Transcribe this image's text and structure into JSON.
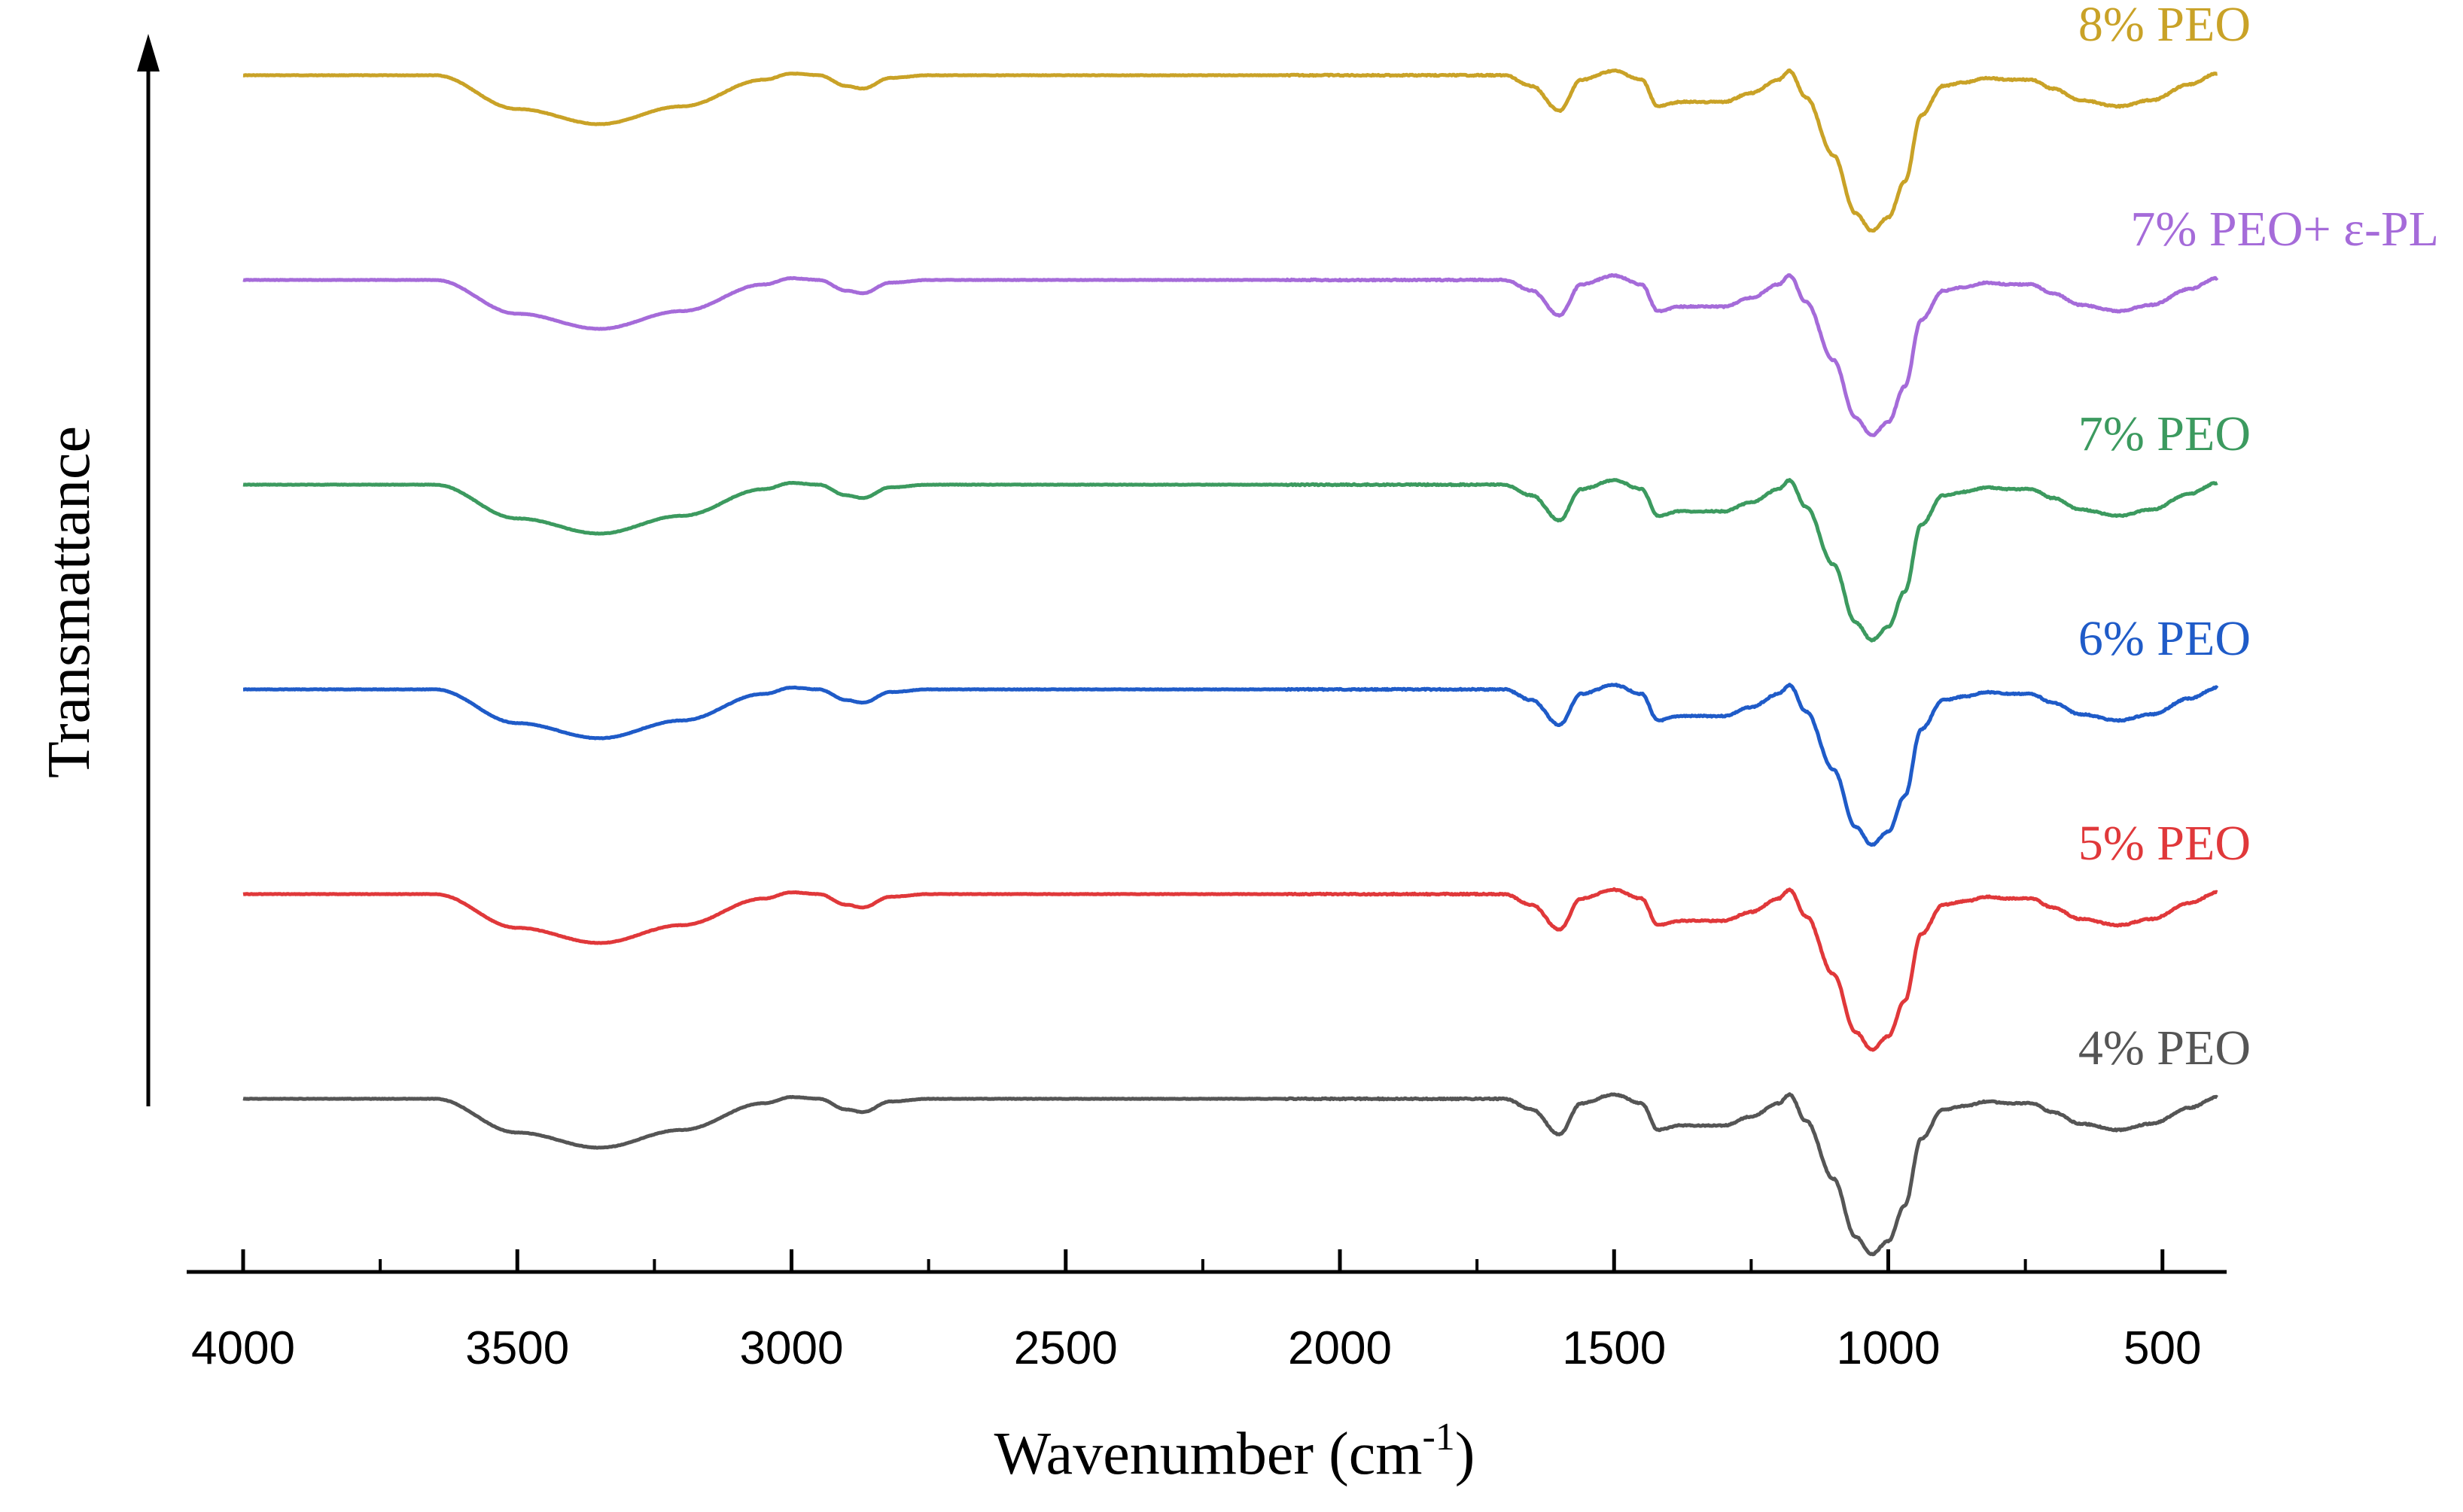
{
  "chart_data": {
    "type": "line",
    "title": "",
    "xlabel_main": "Wavenumber (cm",
    "xlabel_sup": "-1",
    "xlabel_close": ")",
    "ylabel": "Transmattance",
    "xlim": [
      4100,
      390
    ],
    "x_reversed": true,
    "xticks": [
      4000,
      3500,
      3000,
      2500,
      2000,
      1500,
      1000,
      500
    ],
    "yticks": [],
    "grid": false,
    "legend": "inline labels at right end of each trace",
    "series": [
      {
        "name": "8% PEO",
        "color": "#C9A227",
        "offset": 5
      },
      {
        "name": "7% PEO+ ε-PL",
        "color": "#A56BD9",
        "offset": 4
      },
      {
        "name": "7% PEO",
        "color": "#3C9A5F",
        "offset": 3
      },
      {
        "name": "6% PEO",
        "color": "#1F5BC8",
        "offset": 2
      },
      {
        "name": "5% PEO",
        "color": "#E0383A",
        "offset": 1
      },
      {
        "name": "4% PEO",
        "color": "#555555",
        "offset": 0
      }
    ],
    "spectrum_profile": {
      "x": [
        4000,
        3650,
        3500,
        3350,
        3200,
        3050,
        3000,
        2950,
        2900,
        2870,
        2820,
        2750,
        1700,
        1650,
        1600,
        1560,
        1500,
        1450,
        1420,
        1380,
        1300,
        1250,
        1200,
        1180,
        1150,
        1100,
        1060,
        1030,
        1000,
        970,
        940,
        900,
        860,
        820,
        780,
        740,
        700,
        650,
        580,
        520,
        450,
        400
      ],
      "y": [
        0,
        0,
        -0.38,
        -0.55,
        -0.35,
        -0.05,
        0.02,
        0,
        -0.12,
        -0.15,
        -0.03,
        0,
        0,
        -0.12,
        -0.4,
        -0.05,
        0.05,
        -0.05,
        -0.35,
        -0.3,
        -0.3,
        -0.2,
        -0.05,
        0.05,
        -0.25,
        -0.9,
        -1.55,
        -1.75,
        -1.6,
        -1.2,
        -0.45,
        -0.12,
        -0.08,
        -0.03,
        -0.05,
        -0.05,
        -0.15,
        -0.28,
        -0.35,
        -0.28,
        -0.1,
        0.02
      ]
    }
  }
}
